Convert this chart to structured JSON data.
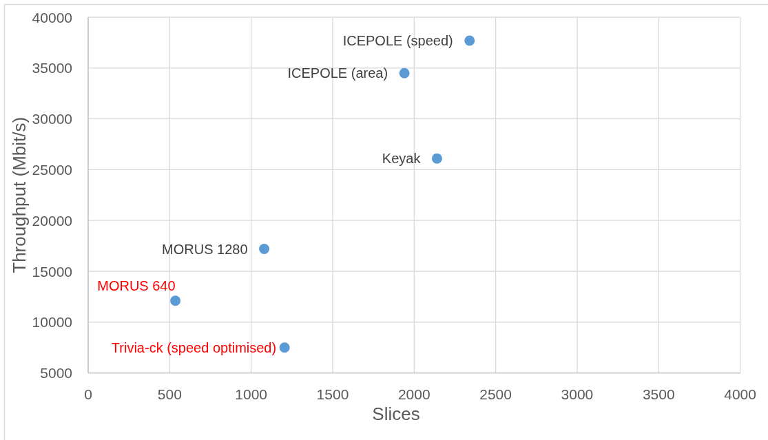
{
  "chart_data": {
    "type": "scatter",
    "xlabel": "Slices",
    "ylabel": "Throughput (Mbit/s)",
    "x": [
      2340,
      1940,
      2140,
      1080,
      535,
      1205
    ],
    "series": [
      {
        "color": "#5b9bd5",
        "values": [
          37700,
          34500,
          26100,
          17200,
          12100,
          7500
        ]
      }
    ],
    "annotations": [
      {
        "text": "ICEPOLE (speed)",
        "x": 2340,
        "y": 37700
      },
      {
        "text": "ICEPOLE (area)",
        "x": 1940,
        "y": 34500
      },
      {
        "text": "Keyak",
        "x": 2140,
        "y": 26100
      },
      {
        "text": "MORUS 1280",
        "x": 1080,
        "y": 17200
      },
      {
        "text": "MORUS 640",
        "x": 535,
        "y": 12100
      },
      {
        "text": "Trivia-ck (speed optimised)",
        "x": 1205,
        "y": 7500
      }
    ],
    "xlim": [
      0,
      4000
    ],
    "xticks": [
      0,
      500,
      1000,
      1500,
      2000,
      2500,
      3000,
      3500,
      4000
    ],
    "ylim": [
      5000,
      40000
    ],
    "yticks": [
      5000,
      10000,
      15000,
      20000,
      25000,
      30000,
      35000,
      40000
    ],
    "grid": true,
    "marker": "circle"
  }
}
